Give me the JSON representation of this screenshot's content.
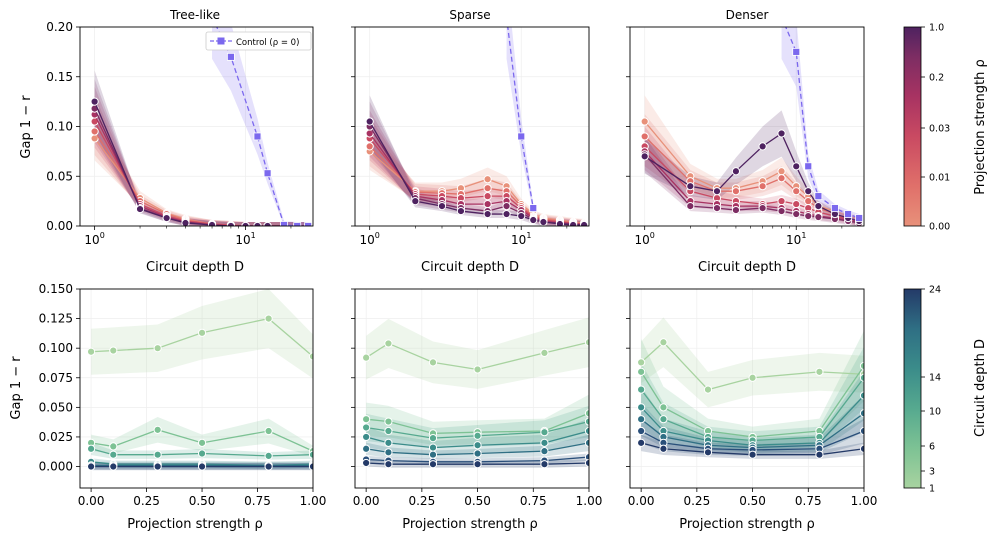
{
  "figure_text": {
    "top_xlabel": "Circuit depth D",
    "bottom_xlabel": "Projection strength ρ",
    "ylabel": "Gap 1 − r",
    "cbar_top_label": "Projection strength ρ",
    "cbar_bottom_label": "Circuit depth D",
    "cbar_top_ticks": [
      "0.00",
      "0.01",
      "0.03",
      "0.2",
      "1.0"
    ],
    "cbar_bottom_ticks": [
      "1",
      "3",
      "6",
      "10",
      "14",
      "24"
    ],
    "legend_control": "Control (ρ = 0)",
    "top_yticks": [
      "0.00",
      "0.05",
      "0.10",
      "0.15",
      "0.20"
    ],
    "bottom_yticks": [
      "0.000",
      "0.025",
      "0.050",
      "0.075",
      "0.100",
      "0.125",
      "0.150"
    ],
    "top_xtick_1": "10",
    "top_xtick_10": "10",
    "top_xtick_exp_1": "0",
    "top_xtick_exp_10": "1",
    "bottom_xticks": [
      "0.00",
      "0.25",
      "0.50",
      "0.75",
      "1.00"
    ]
  },
  "colors": {
    "proj": [
      "#e8917a",
      "#e0706a",
      "#c94a62",
      "#a83362",
      "#7d2d63",
      "#4e2260"
    ],
    "depth": [
      "#a8d3a0",
      "#7dc294",
      "#56a98f",
      "#3b8c8a",
      "#2f6f84",
      "#2a4f7a",
      "#243a68"
    ],
    "control": "#7b68ee"
  },
  "chart_data": [
    {
      "type": "line",
      "title": "Tree-like",
      "xscale": "log",
      "xlim": [
        0.8,
        28
      ],
      "ylim": [
        0,
        0.2
      ],
      "x": [
        1,
        2,
        3,
        4,
        6,
        8,
        10,
        12,
        14,
        18,
        22,
        26
      ],
      "series": [
        {
          "name": "ρ=0.00",
          "values": [
            0.088,
            0.028,
            0.013,
            0.007,
            0.002,
            0.001,
            0,
            0,
            0,
            0,
            0,
            0
          ]
        },
        {
          "name": "ρ=0.01",
          "values": [
            0.095,
            0.025,
            0.012,
            0.006,
            0.002,
            0.001,
            0,
            0,
            0,
            0,
            0,
            0
          ]
        },
        {
          "name": "ρ=0.03",
          "values": [
            0.105,
            0.022,
            0.01,
            0.005,
            0.002,
            0.001,
            0,
            0,
            0,
            0,
            0,
            0
          ]
        },
        {
          "name": "ρ=0.1",
          "values": [
            0.112,
            0.02,
            0.009,
            0.004,
            0.001,
            0,
            0,
            0,
            0,
            0,
            0,
            0
          ]
        },
        {
          "name": "ρ=0.2",
          "values": [
            0.118,
            0.018,
            0.008,
            0.004,
            0.001,
            0,
            0,
            0,
            0,
            0,
            0,
            0
          ]
        },
        {
          "name": "ρ=1.0",
          "values": [
            0.125,
            0.017,
            0.008,
            0.003,
            0.001,
            0,
            0,
            0,
            0,
            0,
            0,
            0
          ]
        }
      ],
      "control": {
        "name": "Control (ρ = 0)",
        "x": [
          6,
          8,
          12,
          14,
          18,
          22,
          26
        ],
        "values": [
          0.21,
          0.17,
          0.09,
          0.053,
          0.001,
          0,
          0
        ]
      }
    },
    {
      "type": "line",
      "title": "Sparse",
      "xscale": "log",
      "xlim": [
        0.8,
        28
      ],
      "ylim": [
        0,
        0.2
      ],
      "x": [
        1,
        2,
        3,
        4,
        6,
        8,
        10,
        12,
        14,
        18,
        22,
        26
      ],
      "series": [
        {
          "name": "ρ=0.00",
          "values": [
            0.075,
            0.035,
            0.035,
            0.038,
            0.047,
            0.04,
            0.022,
            0.012,
            0.008,
            0.006,
            0.004,
            0.003
          ]
        },
        {
          "name": "ρ=0.01",
          "values": [
            0.08,
            0.034,
            0.033,
            0.032,
            0.038,
            0.035,
            0.02,
            0.01,
            0.007,
            0.005,
            0.003,
            0.002
          ]
        },
        {
          "name": "ρ=0.03",
          "values": [
            0.088,
            0.032,
            0.03,
            0.028,
            0.03,
            0.03,
            0.018,
            0.009,
            0.006,
            0.004,
            0.003,
            0.002
          ]
        },
        {
          "name": "ρ=0.1",
          "values": [
            0.093,
            0.03,
            0.026,
            0.022,
            0.022,
            0.025,
            0.016,
            0.008,
            0.005,
            0.003,
            0.002,
            0.001
          ]
        },
        {
          "name": "ρ=0.2",
          "values": [
            0.1,
            0.028,
            0.022,
            0.018,
            0.015,
            0.02,
            0.013,
            0.007,
            0.004,
            0.003,
            0.002,
            0.001
          ]
        },
        {
          "name": "ρ=1.0",
          "values": [
            0.105,
            0.025,
            0.02,
            0.015,
            0.012,
            0.012,
            0.01,
            0.006,
            0.004,
            0.002,
            0.001,
            0.001
          ]
        }
      ],
      "control": {
        "name": "Control (ρ = 0)",
        "x": [
          8,
          10,
          12
        ],
        "values": [
          0.21,
          0.09,
          0.018
        ]
      }
    },
    {
      "type": "line",
      "title": "Denser",
      "xscale": "log",
      "xlim": [
        0.8,
        28
      ],
      "ylim": [
        0,
        0.2
      ],
      "x": [
        1,
        2,
        3,
        4,
        6,
        8,
        10,
        12,
        14,
        18,
        22,
        26
      ],
      "series": [
        {
          "name": "ρ=0.00",
          "values": [
            0.105,
            0.05,
            0.038,
            0.038,
            0.045,
            0.055,
            0.04,
            0.03,
            0.02,
            0.015,
            0.01,
            0.006
          ]
        },
        {
          "name": "ρ=0.01",
          "values": [
            0.09,
            0.045,
            0.035,
            0.035,
            0.04,
            0.048,
            0.035,
            0.025,
            0.018,
            0.012,
            0.008,
            0.005
          ]
        },
        {
          "name": "ρ=0.03",
          "values": [
            0.08,
            0.035,
            0.028,
            0.025,
            0.022,
            0.025,
            0.022,
            0.018,
            0.014,
            0.01,
            0.007,
            0.004
          ]
        },
        {
          "name": "ρ=0.1",
          "values": [
            0.075,
            0.025,
            0.022,
            0.02,
            0.02,
            0.018,
            0.015,
            0.012,
            0.01,
            0.008,
            0.006,
            0.004
          ]
        },
        {
          "name": "ρ=0.2",
          "values": [
            0.072,
            0.02,
            0.018,
            0.016,
            0.018,
            0.015,
            0.012,
            0.01,
            0.009,
            0.007,
            0.005,
            0.003
          ]
        },
        {
          "name": "ρ=1.0",
          "values": [
            0.07,
            0.04,
            0.035,
            0.055,
            0.08,
            0.093,
            0.06,
            0.035,
            0.02,
            0.012,
            0.008,
            0.005
          ]
        }
      ],
      "control": {
        "name": "Control (ρ = 0)",
        "x": [
          8,
          10,
          12,
          14,
          18,
          22,
          26
        ],
        "values": [
          0.21,
          0.175,
          0.06,
          0.03,
          0.018,
          0.012,
          0.008
        ]
      }
    },
    {
      "type": "line",
      "xlabel": "Projection strength ρ",
      "xlim": [
        -0.05,
        1.0
      ],
      "ylim": [
        -0.008,
        0.15
      ],
      "x": [
        0.0,
        0.1,
        0.3,
        0.5,
        0.8,
        1.0
      ],
      "series": [
        {
          "name": "D=1",
          "values": [
            0.097,
            0.098,
            0.1,
            0.113,
            0.125,
            0.093
          ]
        },
        {
          "name": "D=2",
          "values": [
            0.02,
            0.017,
            0.031,
            0.02,
            0.03,
            0.013
          ]
        },
        {
          "name": "D=3",
          "values": [
            0.015,
            0.01,
            0.01,
            0.011,
            0.009,
            0.01
          ]
        },
        {
          "name": "D=6",
          "values": [
            0.004,
            0.002,
            0.002,
            0.002,
            0.001,
            0.002
          ]
        },
        {
          "name": "D=10",
          "values": [
            0.001,
            0.001,
            0.001,
            0.001,
            0.001,
            0.001
          ]
        },
        {
          "name": "D=14",
          "values": [
            0.0,
            0.0,
            0.0,
            0.0,
            0.0,
            0.0
          ]
        },
        {
          "name": "D=24",
          "values": [
            0.0,
            0.0,
            0.0,
            0.0,
            0.0,
            0.0
          ]
        }
      ]
    },
    {
      "type": "line",
      "xlabel": "Projection strength ρ",
      "xlim": [
        -0.05,
        1.0
      ],
      "ylim": [
        -0.008,
        0.15
      ],
      "x": [
        0.0,
        0.1,
        0.3,
        0.5,
        0.8,
        1.0
      ],
      "series": [
        {
          "name": "D=1",
          "values": [
            0.092,
            0.104,
            0.088,
            0.082,
            0.096,
            0.105
          ]
        },
        {
          "name": "D=2",
          "values": [
            0.04,
            0.038,
            0.028,
            0.029,
            0.03,
            0.045
          ]
        },
        {
          "name": "D=3",
          "values": [
            0.033,
            0.03,
            0.024,
            0.026,
            0.029,
            0.038
          ]
        },
        {
          "name": "D=6",
          "values": [
            0.025,
            0.02,
            0.016,
            0.018,
            0.02,
            0.03
          ]
        },
        {
          "name": "D=10",
          "values": [
            0.015,
            0.012,
            0.01,
            0.011,
            0.013,
            0.02
          ]
        },
        {
          "name": "D=14",
          "values": [
            0.006,
            0.005,
            0.004,
            0.004,
            0.005,
            0.008
          ]
        },
        {
          "name": "D=24",
          "values": [
            0.003,
            0.002,
            0.002,
            0.002,
            0.002,
            0.003
          ]
        }
      ]
    },
    {
      "type": "line",
      "xlabel": "Projection strength ρ",
      "xlim": [
        -0.05,
        1.0
      ],
      "ylim": [
        -0.008,
        0.15
      ],
      "x": [
        0.0,
        0.1,
        0.3,
        0.5,
        0.8,
        1.0
      ],
      "series": [
        {
          "name": "D=1",
          "values": [
            0.088,
            0.105,
            0.065,
            0.075,
            0.08,
            0.078
          ]
        },
        {
          "name": "D=2",
          "values": [
            0.08,
            0.05,
            0.03,
            0.025,
            0.03,
            0.085
          ]
        },
        {
          "name": "D=3",
          "values": [
            0.065,
            0.04,
            0.025,
            0.022,
            0.025,
            0.075
          ]
        },
        {
          "name": "D=6",
          "values": [
            0.05,
            0.03,
            0.022,
            0.018,
            0.02,
            0.06
          ]
        },
        {
          "name": "D=10",
          "values": [
            0.04,
            0.025,
            0.018,
            0.016,
            0.018,
            0.045
          ]
        },
        {
          "name": "D=14",
          "values": [
            0.03,
            0.02,
            0.015,
            0.014,
            0.015,
            0.03
          ]
        },
        {
          "name": "D=24",
          "values": [
            0.02,
            0.015,
            0.012,
            0.01,
            0.01,
            0.015
          ]
        }
      ]
    }
  ]
}
